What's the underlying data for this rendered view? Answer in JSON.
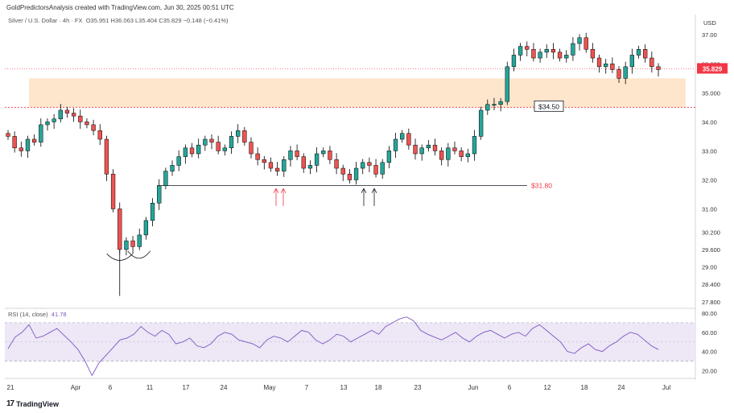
{
  "header": {
    "attribution": "GoldPredictorsAnalysis created with TradingView.com, Jun 30, 2025 00:51 UTC",
    "symbol": "Silver / U.S. Dollar · 4h · FX",
    "ohlc": "O35.951 H36.063 L35.404 C35.829 −0.148 (−0.41%)",
    "currency": "USD"
  },
  "footer": {
    "brand": "TradingView",
    "logo": "17"
  },
  "colors": {
    "up": "#26a69a",
    "down": "#ef5350",
    "candle": "#000000",
    "zone": "#fde6cc",
    "rsi": "#7e57c2",
    "rsi_band": "#ede7f6",
    "price_label": "#f23645"
  },
  "chart_data": [
    {
      "type": "candlestick",
      "title": "Silver / U.S. Dollar · 4h · FX",
      "ylabel": "USD",
      "ylim": [
        27.6,
        37.7
      ],
      "x_ticks": [
        "21",
        "Apr",
        "6",
        "11",
        "17",
        "24",
        "May",
        "7",
        "13",
        "18",
        "23",
        "Jun",
        "6",
        "12",
        "18",
        "24",
        "Jul"
      ],
      "y_ticks": [
        "37.00",
        "36.000",
        "35.000",
        "34.00",
        "33.00",
        "32.00",
        "31.00",
        "30.200",
        "29.600",
        "29.00",
        "28.400",
        "27.800"
      ],
      "last_price": "35.829",
      "series": [
        {
          "name": "close",
          "values": [
            33.5,
            33.1,
            33.0,
            33.4,
            33.3,
            33.9,
            34.0,
            34.1,
            34.4,
            34.3,
            34.2,
            34.0,
            33.9,
            33.7,
            33.4,
            32.2,
            31.0,
            29.6,
            29.9,
            29.7,
            30.1,
            30.6,
            31.2,
            31.8,
            32.3,
            32.5,
            32.8,
            33.1,
            32.9,
            33.2,
            33.4,
            33.3,
            33.0,
            33.1,
            33.5,
            33.7,
            33.3,
            32.9,
            32.7,
            32.6,
            32.4,
            32.3,
            32.7,
            33.0,
            32.8,
            32.4,
            32.5,
            32.9,
            33.0,
            32.7,
            32.4,
            32.2,
            32.0,
            32.4,
            32.6,
            32.5,
            32.2,
            32.6,
            33.0,
            33.4,
            33.6,
            33.2,
            32.9,
            33.1,
            33.2,
            33.0,
            32.7,
            33.1,
            33.0,
            32.8,
            32.9,
            33.5,
            34.4,
            34.6,
            34.6,
            34.7,
            35.9,
            36.3,
            36.6,
            36.5,
            36.2,
            36.4,
            36.5,
            36.4,
            36.2,
            36.3,
            36.7,
            36.9,
            36.5,
            36.2,
            35.9,
            36.0,
            35.8,
            35.5,
            35.9,
            36.3,
            36.5,
            36.2,
            35.9,
            35.8
          ]
        },
        {
          "name": "RSI",
          "values": [
            43,
            55,
            60,
            68,
            54,
            56,
            60,
            64,
            57,
            50,
            42,
            30,
            15,
            28,
            36,
            44,
            52,
            54,
            58,
            66,
            60,
            56,
            62,
            58,
            48,
            50,
            54,
            46,
            44,
            48,
            56,
            60,
            58,
            52,
            50,
            48,
            44,
            52,
            56,
            54,
            50,
            56,
            62,
            60,
            52,
            48,
            52,
            58,
            56,
            50,
            54,
            58,
            62,
            58,
            66,
            70,
            74,
            76,
            72,
            62,
            58,
            55,
            52,
            56,
            60,
            54,
            50,
            56,
            60,
            62,
            58,
            54,
            58,
            60,
            56,
            64,
            68,
            62,
            56,
            50,
            40,
            38,
            44,
            48,
            42,
            40,
            46,
            50,
            56,
            60,
            58,
            52,
            46,
            42
          ]
        }
      ],
      "annotations": [
        {
          "text": "$34.50",
          "value": 34.5
        },
        {
          "text": "$31.80",
          "value": 31.8
        }
      ],
      "rsi": {
        "label": "RSI (14, close)",
        "value": "41.78",
        "levels": [
          70,
          30
        ],
        "ticks": [
          "80.00",
          "60.00",
          "40.00",
          "20.00"
        ],
        "ylim": [
          12,
          85
        ]
      }
    }
  ]
}
